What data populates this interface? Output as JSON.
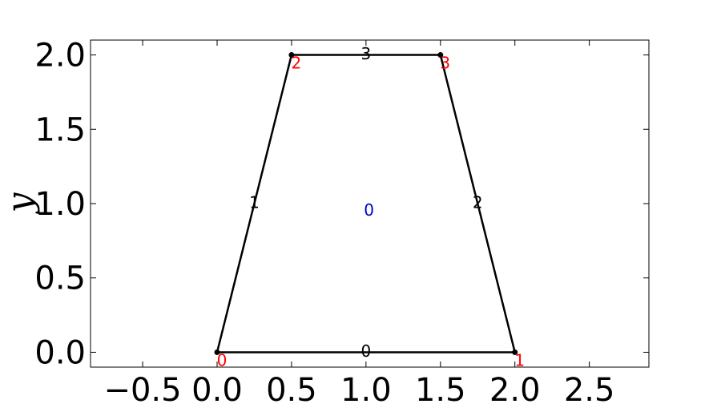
{
  "chart_data": {
    "type": "line",
    "title": "",
    "xlabel": "",
    "ylabel": "y",
    "xlim": [
      -0.85,
      2.9
    ],
    "ylim": [
      -0.1,
      2.1
    ],
    "x_ticks": [
      -0.5,
      0.0,
      0.5,
      1.0,
      1.5,
      2.0,
      2.5
    ],
    "x_tick_labels": [
      "−0.5",
      "0.0",
      "0.5",
      "1.0",
      "1.5",
      "2.0",
      "2.5"
    ],
    "y_ticks": [
      0.0,
      0.5,
      1.0,
      1.5,
      2.0
    ],
    "y_tick_labels": [
      "0.0",
      "0.5",
      "1.0",
      "1.5",
      "2.0"
    ],
    "grid": false,
    "nodes": [
      {
        "label": "0",
        "x": 0.0,
        "y": 0.0
      },
      {
        "label": "1",
        "x": 2.0,
        "y": 0.0
      },
      {
        "label": "2",
        "x": 0.5,
        "y": 2.0
      },
      {
        "label": "3",
        "x": 1.5,
        "y": 2.0
      }
    ],
    "edges": [
      {
        "label": "0",
        "from": 0,
        "to": 1
      },
      {
        "label": "1",
        "from": 0,
        "to": 2
      },
      {
        "label": "2",
        "from": 1,
        "to": 3
      },
      {
        "label": "3",
        "from": 2,
        "to": 3
      }
    ],
    "elements": [
      {
        "label": "0",
        "x": 1.02,
        "y": 0.95
      }
    ],
    "colors": {
      "edge": "#000000",
      "node_label": "#ff0000",
      "edge_label": "#000000",
      "element_label": "#0000cc"
    }
  }
}
